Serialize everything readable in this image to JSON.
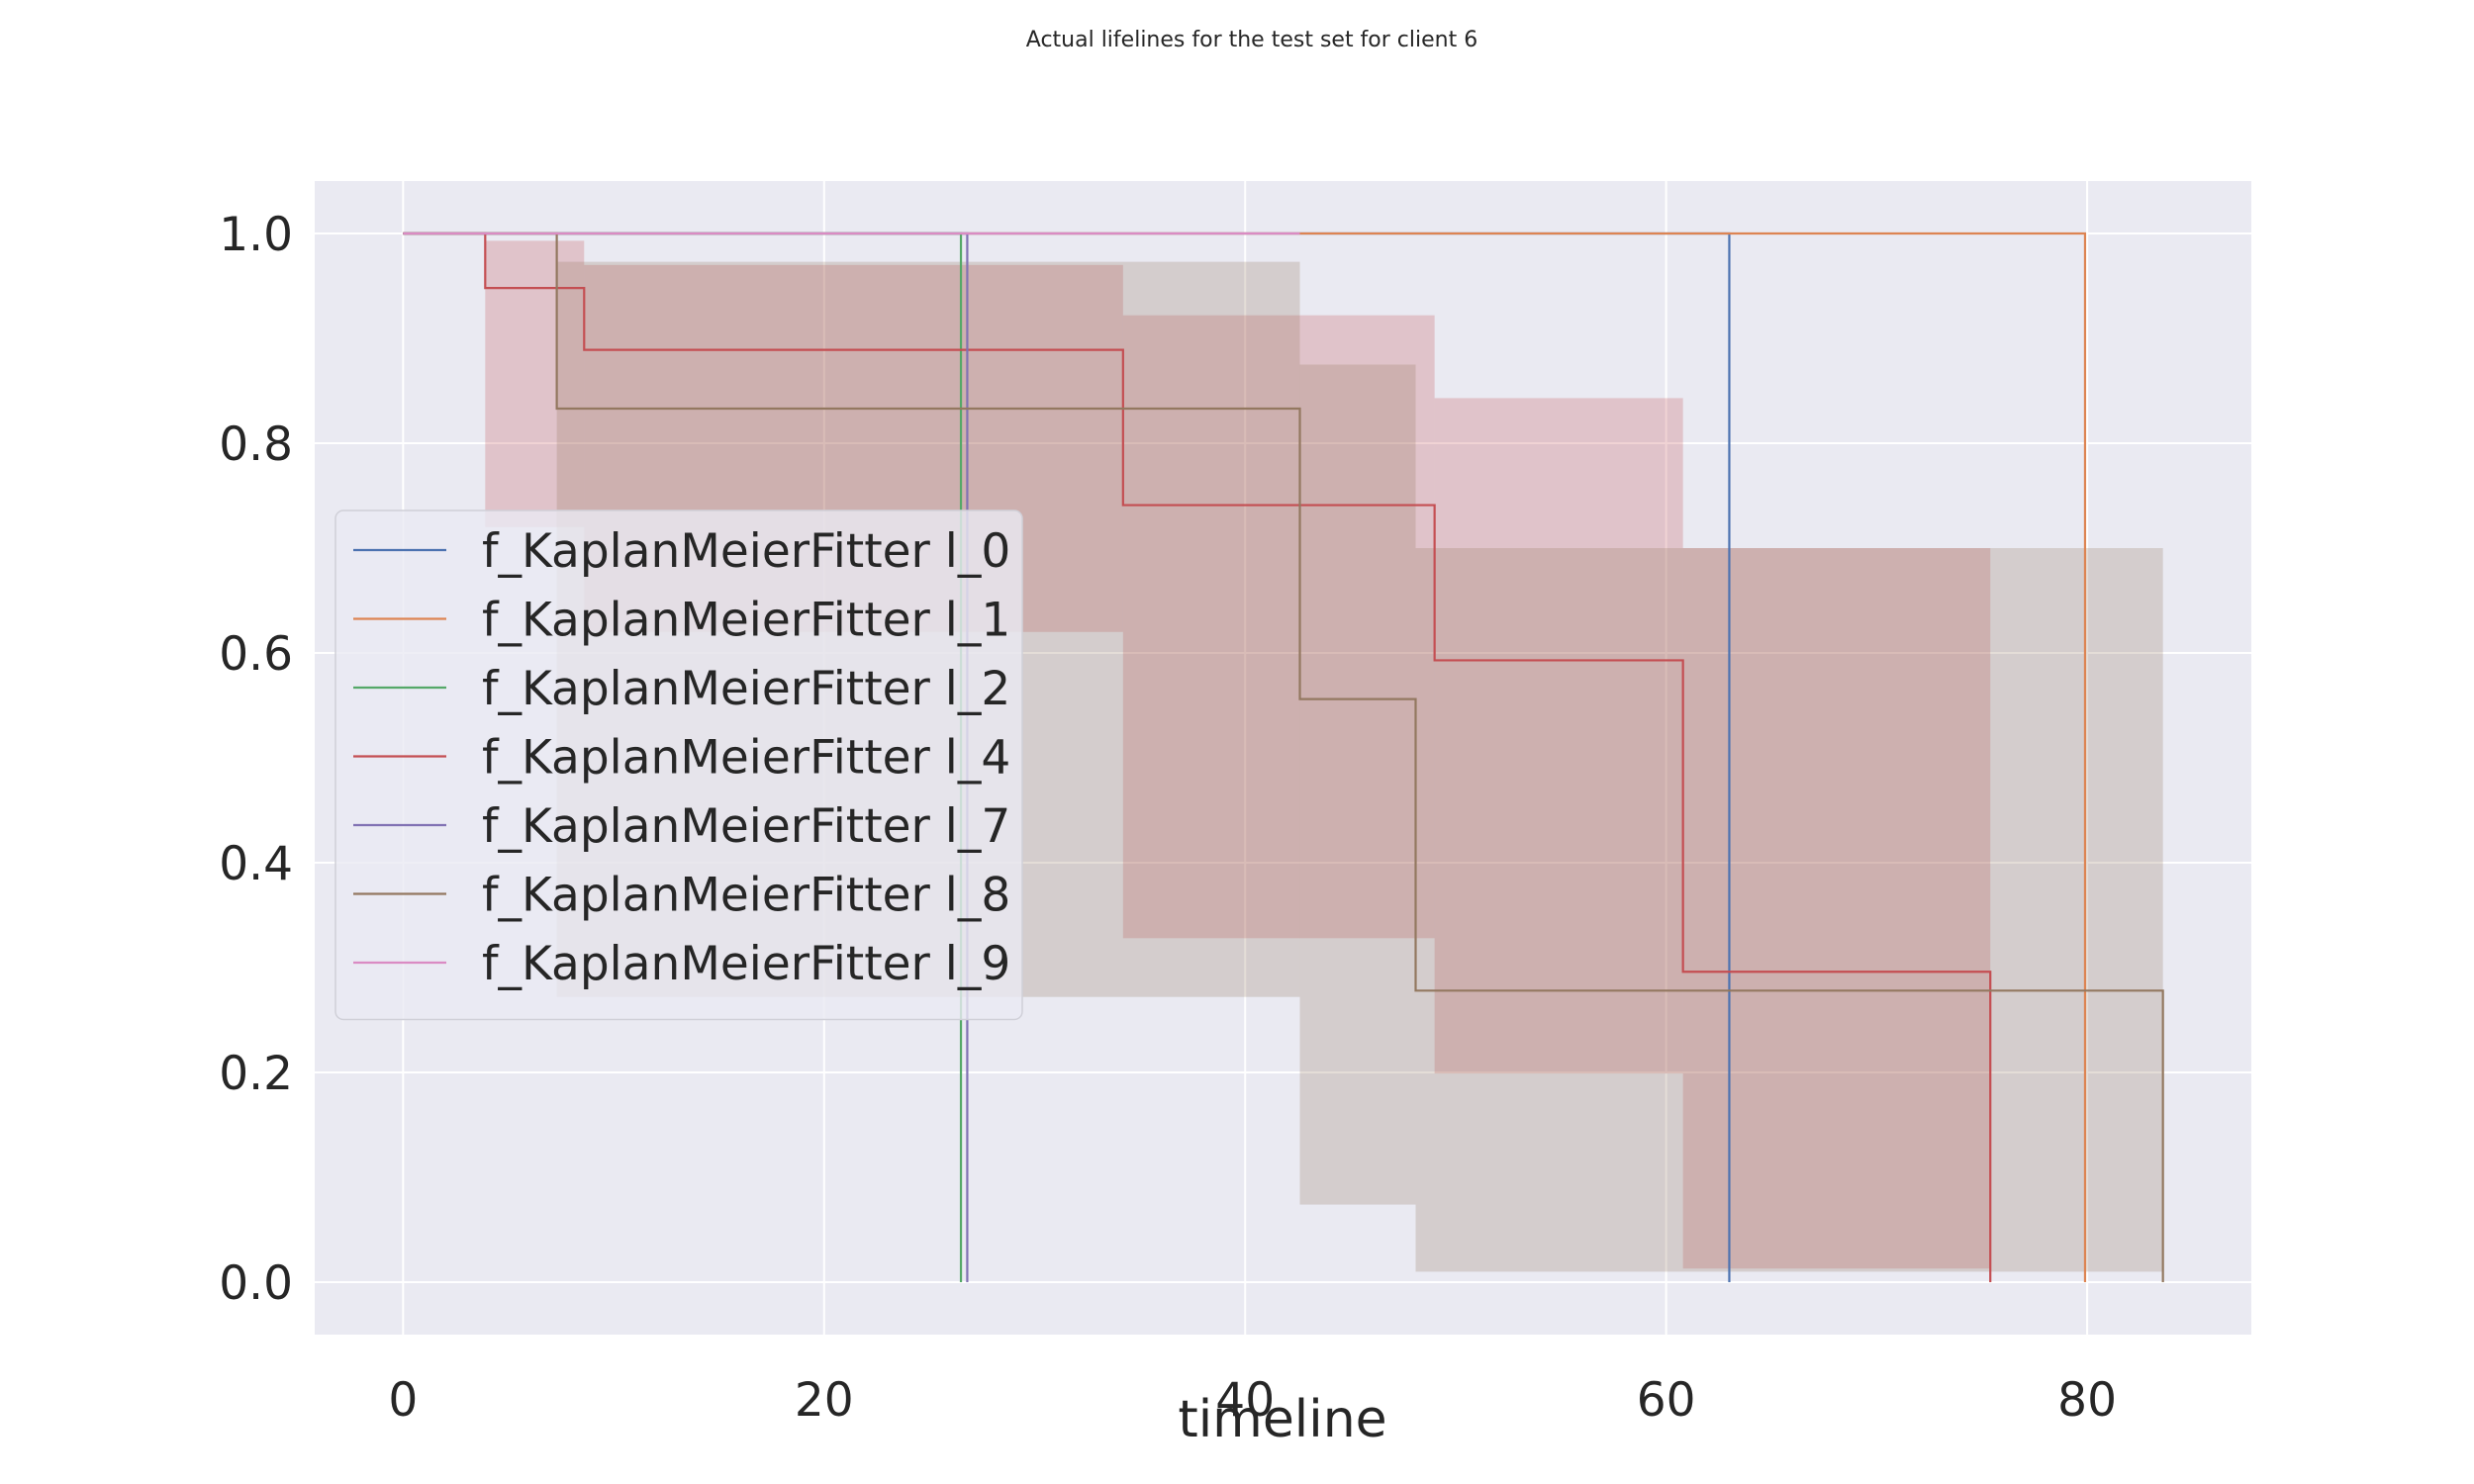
{
  "chart_data": {
    "type": "line",
    "title": "Actual lifelines for the test set for client 6",
    "xlabel": "timeline",
    "ylabel": "",
    "xlim": [
      -4.2,
      87.8
    ],
    "ylim": [
      -0.05,
      1.05
    ],
    "xticks": [
      0,
      20,
      40,
      60,
      80
    ],
    "xtick_labels": [
      "0",
      "20",
      "40",
      "60",
      "80"
    ],
    "yticks": [
      0.0,
      0.2,
      0.4,
      0.6,
      0.8,
      1.0
    ],
    "ytick_labels": [
      "0.0",
      "0.2",
      "0.4",
      "0.6",
      "0.8",
      "1.0"
    ],
    "grid": true,
    "legend_position": "center-left",
    "series": [
      {
        "name": "f_KaplanMeierFitter l_0",
        "color": "#4c72b0",
        "steps": [
          [
            0,
            1.0
          ],
          [
            63.0,
            0.0
          ]
        ],
        "end": 63.0,
        "ci": []
      },
      {
        "name": "f_KaplanMeierFitter l_1",
        "color": "#dd8452",
        "steps": [
          [
            0,
            1.0
          ],
          [
            79.9,
            0.0
          ]
        ],
        "end": 79.9,
        "ci": []
      },
      {
        "name": "f_KaplanMeierFitter l_2",
        "color": "#55a868",
        "steps": [
          [
            0,
            1.0
          ],
          [
            26.5,
            0.0
          ]
        ],
        "end": 26.5,
        "ci": []
      },
      {
        "name": "f_KaplanMeierFitter l_4",
        "color": "#c44e52",
        "steps": [
          [
            0,
            1.0
          ],
          [
            3.9,
            0.948
          ],
          [
            8.6,
            0.889
          ],
          [
            34.2,
            0.741
          ],
          [
            49.0,
            0.593
          ],
          [
            60.8,
            0.296
          ],
          [
            75.4,
            0.0
          ]
        ],
        "end": 75.4,
        "ci": [
          [
            3.9,
            8.6,
            0.72,
            0.993
          ],
          [
            8.6,
            34.2,
            0.62,
            0.97
          ],
          [
            34.2,
            49.0,
            0.328,
            0.922
          ],
          [
            49.0,
            60.8,
            0.199,
            0.843
          ],
          [
            60.8,
            75.4,
            0.013,
            0.7
          ]
        ]
      },
      {
        "name": "f_KaplanMeierFitter l_7",
        "color": "#8172b3",
        "steps": [
          [
            0,
            1.0
          ],
          [
            26.8,
            0.0
          ]
        ],
        "end": 26.8,
        "ci": []
      },
      {
        "name": "f_KaplanMeierFitter l_8",
        "color": "#937860",
        "steps": [
          [
            0,
            1.0
          ],
          [
            7.3,
            0.833
          ],
          [
            42.6,
            0.556
          ],
          [
            48.1,
            0.278
          ],
          [
            83.6,
            0.0
          ]
        ],
        "end": 83.6,
        "ci": [
          [
            7.3,
            42.6,
            0.272,
            0.973
          ],
          [
            42.6,
            48.1,
            0.074,
            0.875
          ],
          [
            48.1,
            83.6,
            0.01,
            0.7
          ]
        ]
      },
      {
        "name": "f_KaplanMeierFitter l_9",
        "color": "#da8bc3",
        "steps": [
          [
            0,
            1.0
          ]
        ],
        "end": 42.6,
        "ci": []
      }
    ]
  }
}
